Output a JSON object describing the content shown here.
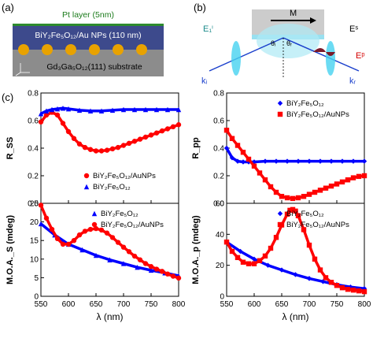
{
  "panels": {
    "a": {
      "label": "(a)",
      "pt_layer": "Pt layer (5nm)",
      "film_layer": "BiY₂Fe₅O₁₂/Au NPs (110 nm)",
      "substrate": "Gd₃Ga₅O₁₂(111) substrate",
      "axes_note": "y z x",
      "colors": {
        "pt": "#2e8b2e",
        "film": "#3d4a8c",
        "substrate": "#8c8c8c",
        "np": "#e8a200"
      }
    },
    "b": {
      "label": "(b)",
      "M": "M",
      "E_i": "E₁ⁱ",
      "k_i": "kᵢ",
      "k_r": "kᵣ",
      "E_s": "Eˢ",
      "E_p": "Eᵖ",
      "theta_i": "θᵢ",
      "theta_r": "θᵣ"
    },
    "c": {
      "label": "(c)"
    }
  },
  "chart_data": [
    {
      "type": "line",
      "title": "",
      "xlabel": "",
      "ylabel": "R_SS",
      "xlim": [
        550,
        800
      ],
      "ylim": [
        0.0,
        0.8
      ],
      "yticks": [
        0.0,
        0.2,
        0.4,
        0.6,
        0.8
      ],
      "ytick_labels": [
        "0.0",
        "0.2",
        "0.4",
        "0.6",
        "0.8"
      ],
      "legend_position": "lower-right",
      "series": [
        {
          "name": "BiY₂Fe₅O₁₂/AuNPs",
          "color": "#ff0000",
          "marker": "circle",
          "x": [
            550,
            560,
            570,
            580,
            590,
            600,
            610,
            620,
            630,
            640,
            650,
            660,
            670,
            680,
            690,
            700,
            710,
            720,
            730,
            740,
            750,
            760,
            770,
            780,
            790,
            800
          ],
          "y": [
            0.59,
            0.64,
            0.66,
            0.64,
            0.58,
            0.52,
            0.47,
            0.43,
            0.405,
            0.39,
            0.38,
            0.38,
            0.385,
            0.395,
            0.405,
            0.42,
            0.435,
            0.45,
            0.465,
            0.48,
            0.495,
            0.51,
            0.525,
            0.54,
            0.555,
            0.57
          ]
        },
        {
          "name": "BiY₂Fe₅O₁₂",
          "color": "#0000ff",
          "marker": "triangle",
          "x": [
            550,
            560,
            570,
            580,
            590,
            600,
            620,
            640,
            660,
            680,
            700,
            720,
            740,
            760,
            780,
            800
          ],
          "y": [
            0.65,
            0.67,
            0.68,
            0.685,
            0.69,
            0.685,
            0.675,
            0.67,
            0.67,
            0.675,
            0.68,
            0.68,
            0.68,
            0.68,
            0.68,
            0.68
          ]
        }
      ]
    },
    {
      "type": "line",
      "title": "",
      "xlabel": "",
      "ylabel": "R_pp",
      "xlim": [
        550,
        800
      ],
      "ylim": [
        0.0,
        0.8
      ],
      "yticks": [
        0.0,
        0.2,
        0.4,
        0.6,
        0.8
      ],
      "ytick_labels": [
        "0.0",
        "0.2",
        "0.4",
        "0.6",
        "0.8"
      ],
      "legend_position": "top-right",
      "series": [
        {
          "name": "BiY₂Fe₅O₁₂",
          "color": "#0000ff",
          "marker": "diamond",
          "x": [
            550,
            560,
            570,
            580,
            590,
            600,
            620,
            640,
            660,
            680,
            700,
            720,
            740,
            760,
            780,
            800
          ],
          "y": [
            0.4,
            0.33,
            0.305,
            0.3,
            0.3,
            0.3,
            0.305,
            0.305,
            0.305,
            0.305,
            0.305,
            0.305,
            0.305,
            0.305,
            0.305,
            0.305
          ]
        },
        {
          "name": "BiY₂Fe₅O₁₂/AuNPs",
          "color": "#ff0000",
          "marker": "square",
          "x": [
            550,
            560,
            570,
            580,
            590,
            600,
            610,
            620,
            630,
            640,
            650,
            660,
            670,
            680,
            690,
            700,
            710,
            720,
            730,
            740,
            750,
            760,
            770,
            780,
            790,
            800
          ],
          "y": [
            0.53,
            0.47,
            0.42,
            0.37,
            0.32,
            0.27,
            0.22,
            0.17,
            0.12,
            0.08,
            0.05,
            0.04,
            0.035,
            0.04,
            0.05,
            0.065,
            0.08,
            0.095,
            0.11,
            0.125,
            0.14,
            0.155,
            0.17,
            0.185,
            0.195,
            0.2
          ]
        }
      ]
    },
    {
      "type": "line",
      "title": "",
      "xlabel": "λ (nm)",
      "ylabel": "M.O.A._S (mdeg)",
      "xlim": [
        550,
        800
      ],
      "ylim": [
        0,
        25
      ],
      "yticks": [
        0,
        5,
        10,
        15,
        20,
        25
      ],
      "xticks": [
        550,
        600,
        650,
        700,
        750,
        800
      ],
      "legend_position": "top-right",
      "series": [
        {
          "name": "BiY₂Fe₅O₁₂",
          "color": "#0000ff",
          "marker": "triangle",
          "x": [
            550,
            575,
            600,
            625,
            650,
            675,
            700,
            725,
            750,
            775,
            800
          ],
          "y": [
            19.5,
            16.5,
            14,
            12.5,
            11.0,
            9.8,
            8.8,
            7.8,
            7.0,
            6.3,
            5.5
          ]
        },
        {
          "name": "BiY₂Fe₅O₁₂/AuNPs",
          "color": "#ff0000",
          "marker": "circle",
          "x": [
            550,
            560,
            570,
            580,
            590,
            600,
            610,
            620,
            630,
            640,
            650,
            660,
            670,
            680,
            690,
            700,
            710,
            720,
            730,
            740,
            750,
            760,
            770,
            780,
            790,
            800
          ],
          "y": [
            24.5,
            21,
            18,
            15.5,
            14.0,
            14.0,
            15,
            16.5,
            17.5,
            18.0,
            18.2,
            17.8,
            17.0,
            15.8,
            14.5,
            13.2,
            12.0,
            10.8,
            9.8,
            8.8,
            8.0,
            7.3,
            6.7,
            6.0,
            5.4,
            4.9
          ]
        }
      ]
    },
    {
      "type": "line",
      "title": "",
      "xlabel": "λ (nm)",
      "ylabel": "M.O.A._p (mdeg)",
      "xlim": [
        550,
        800
      ],
      "ylim": [
        0,
        60
      ],
      "yticks": [
        0,
        20,
        40,
        60
      ],
      "xticks": [
        550,
        600,
        650,
        700,
        750,
        800
      ],
      "legend_position": "top-right",
      "series": [
        {
          "name": "BiY₂Fe₅O₁₂",
          "color": "#0000ff",
          "marker": "diamond",
          "x": [
            550,
            575,
            600,
            625,
            650,
            675,
            700,
            725,
            750,
            775,
            800
          ],
          "y": [
            35,
            29,
            24,
            20,
            17,
            14,
            11.5,
            9.5,
            7.5,
            6,
            5
          ]
        },
        {
          "name": "BiY₂Fe₅O₁₂/AuNPs",
          "color": "#ff0000",
          "marker": "square",
          "x": [
            550,
            560,
            570,
            580,
            590,
            600,
            610,
            620,
            630,
            640,
            650,
            660,
            665,
            670,
            675,
            680,
            690,
            700,
            710,
            720,
            730,
            740,
            750,
            760,
            770,
            780,
            790,
            800
          ],
          "y": [
            35,
            29,
            25,
            22,
            21,
            21,
            23,
            26,
            31,
            38,
            46,
            53,
            55.5,
            56,
            55,
            52,
            43,
            33,
            24,
            17,
            12,
            9,
            7,
            5.5,
            4.5,
            4,
            3.5,
            3
          ]
        }
      ]
    }
  ]
}
